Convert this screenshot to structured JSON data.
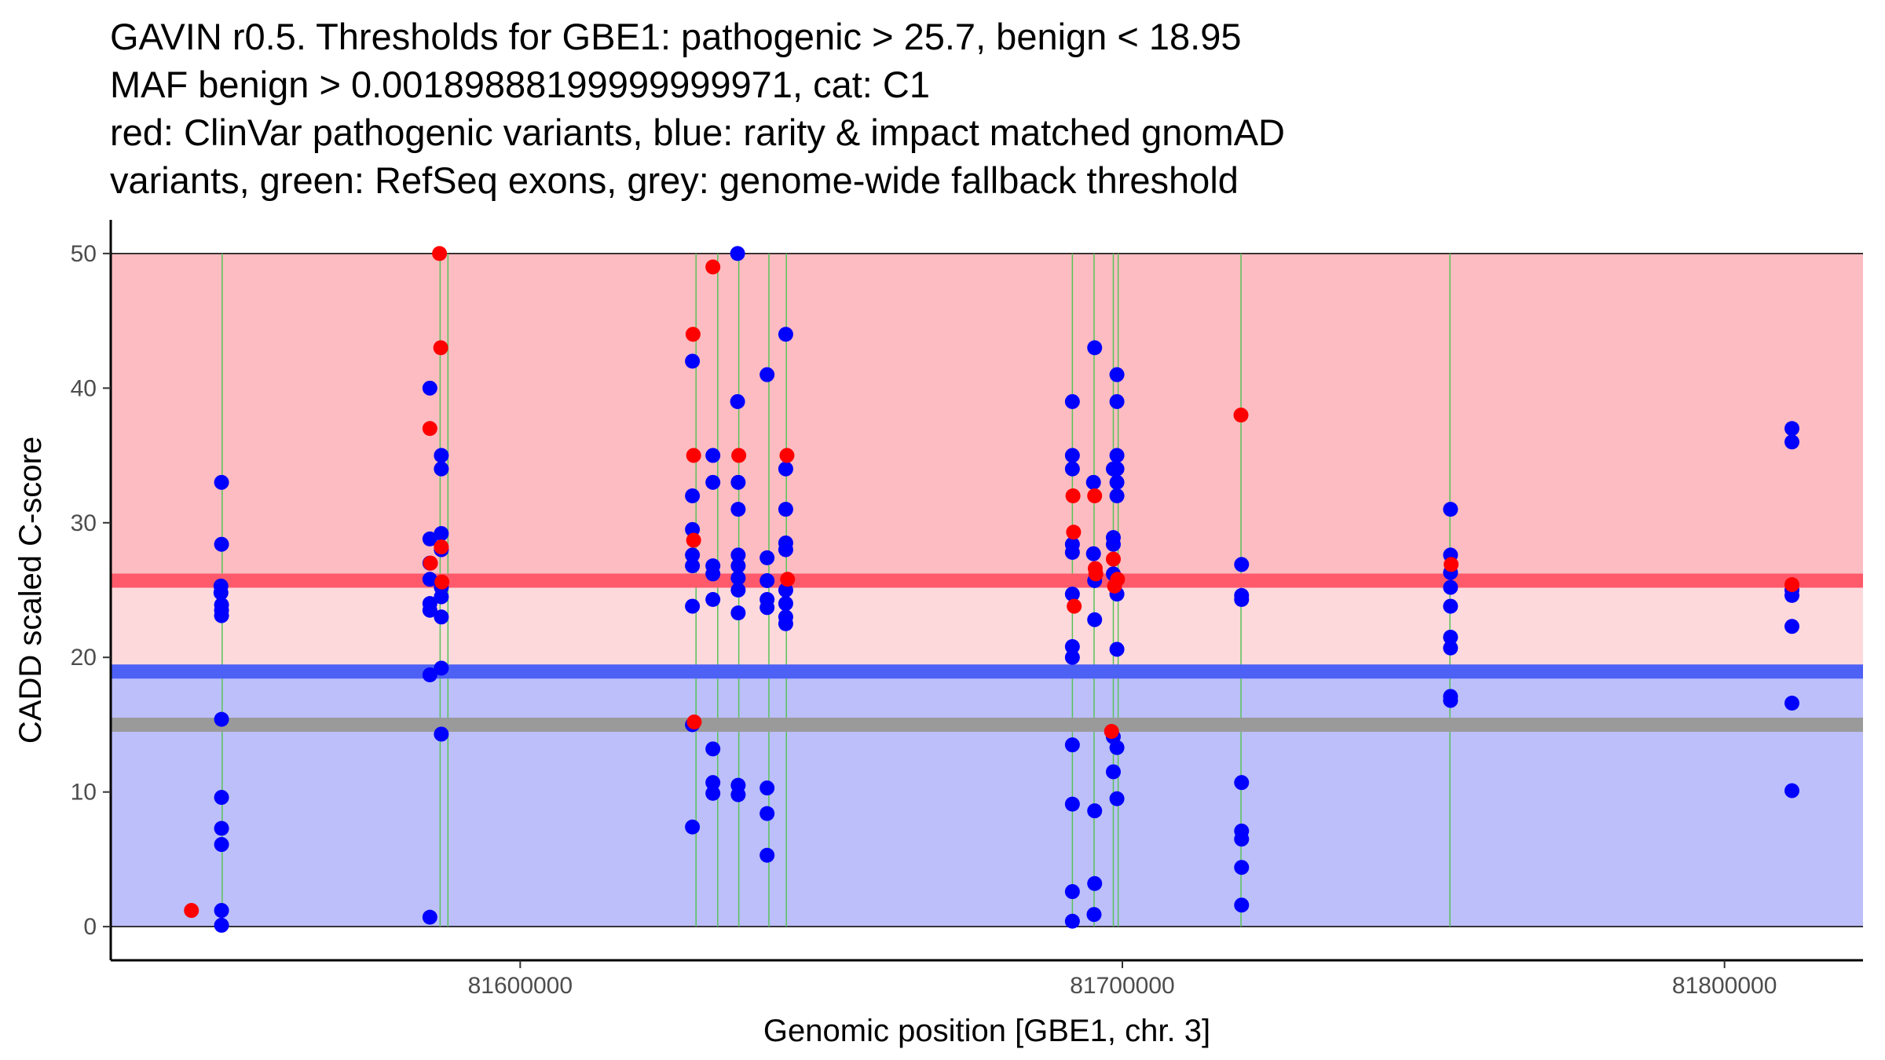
{
  "chart_data": {
    "type": "scatter",
    "title_lines": [
      "GAVIN r0.5. Thresholds for GBE1: pathogenic > 25.7, benign < 18.95",
      "MAF benign > 0.00189888199999999971, cat: C1",
      "red: ClinVar pathogenic variants, blue: rarity & impact matched gnomAD",
      "variants, green: RefSeq exons, grey: genome-wide fallback threshold"
    ],
    "xlabel": "Genomic position [GBE1, chr. 3]",
    "ylabel": "CADD scaled C-score",
    "xlim": [
      81532000,
      81823000
    ],
    "ylim": [
      -2.5,
      52.5
    ],
    "xticks": [
      81600000,
      81700000,
      81800000
    ],
    "xtick_labels": [
      "81600000",
      "81700000",
      "81800000"
    ],
    "yticks": [
      0,
      10,
      20,
      30,
      40,
      50
    ],
    "ytick_labels": [
      "0",
      "10",
      "20",
      "30",
      "40",
      "50"
    ],
    "thresholds": {
      "pathogenic": 25.7,
      "benign": 18.95,
      "fallback": 15.0
    },
    "regions": [
      {
        "name": "pathogenic-zone",
        "ymin": 25.7,
        "ymax": 50,
        "color": "#FDBCC1"
      },
      {
        "name": "uncertain-zone",
        "ymin": 18.95,
        "ymax": 25.7,
        "color": "#FDD9DC"
      },
      {
        "name": "benign-zone",
        "ymin": 0,
        "ymax": 18.95,
        "color": "#BCBFFA"
      }
    ],
    "threshold_lines": [
      {
        "name": "pathogenic-threshold-line",
        "y": 25.7,
        "color": "#FF5A6B"
      },
      {
        "name": "benign-threshold-line",
        "y": 18.95,
        "color": "#4E61F5"
      },
      {
        "name": "fallback-threshold-line",
        "y": 15.0,
        "color": "#9A9A9A"
      }
    ],
    "exons": [
      81550500,
      81586700,
      81588000,
      81629200,
      81632800,
      81636300,
      81641300,
      81644200,
      81691700,
      81695300,
      81698500,
      81699300,
      81719700,
      81754400
    ],
    "colors": {
      "clinvar": "#FF0000",
      "gnomad": "#0000FF",
      "exon": "#59C259"
    },
    "series": [
      {
        "name": "ClinVar pathogenic variants",
        "points": [
          [
            81545400,
            1.2
          ],
          [
            81585000,
            37
          ],
          [
            81585100,
            27
          ],
          [
            81586600,
            50
          ],
          [
            81586800,
            43
          ],
          [
            81586900,
            28.2
          ],
          [
            81587000,
            25.6
          ],
          [
            81628700,
            44
          ],
          [
            81628800,
            35
          ],
          [
            81628800,
            28.7
          ],
          [
            81628900,
            15.2
          ],
          [
            81632000,
            49
          ],
          [
            81636300,
            35
          ],
          [
            81644300,
            35
          ],
          [
            81644400,
            25.8
          ],
          [
            81691800,
            32
          ],
          [
            81691900,
            29.3
          ],
          [
            81692000,
            23.8
          ],
          [
            81695400,
            32
          ],
          [
            81695500,
            26.6
          ],
          [
            81695600,
            26.2
          ],
          [
            81698200,
            14.5
          ],
          [
            81698500,
            27.3
          ],
          [
            81698700,
            25.3
          ],
          [
            81699200,
            25.8
          ],
          [
            81719700,
            38
          ],
          [
            81754600,
            26.9
          ],
          [
            81811200,
            25.4
          ]
        ]
      },
      {
        "name": "rarity & impact matched gnomAD variants",
        "points": [
          [
            81550400,
            33
          ],
          [
            81550400,
            28.4
          ],
          [
            81550300,
            25.3
          ],
          [
            81550300,
            24.8
          ],
          [
            81550400,
            23.9
          ],
          [
            81550400,
            23.5
          ],
          [
            81550400,
            23.1
          ],
          [
            81550400,
            15.4
          ],
          [
            81550400,
            9.6
          ],
          [
            81550400,
            7.3
          ],
          [
            81550400,
            6.1
          ],
          [
            81550400,
            1.2
          ],
          [
            81550400,
            0.1
          ],
          [
            81585000,
            40
          ],
          [
            81585000,
            28.8
          ],
          [
            81585000,
            27
          ],
          [
            81585000,
            25.8
          ],
          [
            81585000,
            24
          ],
          [
            81585000,
            23.5
          ],
          [
            81585000,
            18.7
          ],
          [
            81585000,
            0.7
          ],
          [
            81586900,
            35
          ],
          [
            81586900,
            34
          ],
          [
            81586900,
            29.2
          ],
          [
            81586900,
            28
          ],
          [
            81586900,
            25.2
          ],
          [
            81586900,
            24.5
          ],
          [
            81586900,
            23
          ],
          [
            81586900,
            19.2
          ],
          [
            81586900,
            14.3
          ],
          [
            81628600,
            42
          ],
          [
            81628600,
            32
          ],
          [
            81628600,
            29.5
          ],
          [
            81628600,
            27.6
          ],
          [
            81628600,
            26.8
          ],
          [
            81628600,
            23.8
          ],
          [
            81628600,
            15
          ],
          [
            81628600,
            7.4
          ],
          [
            81632000,
            35
          ],
          [
            81632000,
            33
          ],
          [
            81632000,
            26.8
          ],
          [
            81632000,
            26.2
          ],
          [
            81632000,
            24.3
          ],
          [
            81632000,
            13.2
          ],
          [
            81632000,
            10.7
          ],
          [
            81632000,
            9.9
          ],
          [
            81636100,
            50
          ],
          [
            81636100,
            39
          ],
          [
            81636200,
            33
          ],
          [
            81636200,
            31
          ],
          [
            81636200,
            27.6
          ],
          [
            81636200,
            26.8
          ],
          [
            81636200,
            25.9
          ],
          [
            81636200,
            25.0
          ],
          [
            81636200,
            23.3
          ],
          [
            81636200,
            10.5
          ],
          [
            81636200,
            9.8
          ],
          [
            81641000,
            41
          ],
          [
            81641000,
            27.4
          ],
          [
            81641000,
            25.7
          ],
          [
            81641000,
            24.3
          ],
          [
            81641000,
            23.7
          ],
          [
            81641000,
            10.3
          ],
          [
            81641000,
            8.4
          ],
          [
            81641000,
            5.3
          ],
          [
            81644100,
            44
          ],
          [
            81644100,
            34
          ],
          [
            81644100,
            31
          ],
          [
            81644100,
            28.5
          ],
          [
            81644100,
            28
          ],
          [
            81644100,
            25
          ],
          [
            81644100,
            24
          ],
          [
            81644100,
            23
          ],
          [
            81644100,
            22.5
          ],
          [
            81691700,
            39
          ],
          [
            81691700,
            35
          ],
          [
            81691700,
            34
          ],
          [
            81691700,
            28.4
          ],
          [
            81691700,
            27.8
          ],
          [
            81691700,
            24.7
          ],
          [
            81691700,
            20.8
          ],
          [
            81691700,
            20
          ],
          [
            81691700,
            13.5
          ],
          [
            81691700,
            9.1
          ],
          [
            81691700,
            2.6
          ],
          [
            81691700,
            0.4
          ],
          [
            81695400,
            43
          ],
          [
            81695200,
            33
          ],
          [
            81695200,
            27.7
          ],
          [
            81695400,
            25.7
          ],
          [
            81695400,
            22.8
          ],
          [
            81695400,
            8.6
          ],
          [
            81695400,
            3.2
          ],
          [
            81695300,
            0.9
          ],
          [
            81698500,
            34
          ],
          [
            81698500,
            28.9
          ],
          [
            81698500,
            28.4
          ],
          [
            81698500,
            26.2
          ],
          [
            81698500,
            14.1
          ],
          [
            81698500,
            11.5
          ],
          [
            81699100,
            41
          ],
          [
            81699100,
            39
          ],
          [
            81699100,
            35
          ],
          [
            81699100,
            34
          ],
          [
            81699100,
            33
          ],
          [
            81699100,
            32
          ],
          [
            81699100,
            24.7
          ],
          [
            81699100,
            20.6
          ],
          [
            81699100,
            13.3
          ],
          [
            81699100,
            9.5
          ],
          [
            81719800,
            26.9
          ],
          [
            81719800,
            24.6
          ],
          [
            81719800,
            24.3
          ],
          [
            81719800,
            10.7
          ],
          [
            81719800,
            7.1
          ],
          [
            81719800,
            6.5
          ],
          [
            81719800,
            4.4
          ],
          [
            81719800,
            1.6
          ],
          [
            81754500,
            31
          ],
          [
            81754500,
            27.6
          ],
          [
            81754500,
            26.3
          ],
          [
            81754500,
            25.2
          ],
          [
            81754500,
            23.8
          ],
          [
            81754500,
            21.5
          ],
          [
            81754500,
            20.7
          ],
          [
            81754500,
            17.1
          ],
          [
            81754500,
            16.8
          ],
          [
            81811200,
            37
          ],
          [
            81811200,
            36
          ],
          [
            81811200,
            25
          ],
          [
            81811200,
            24.6
          ],
          [
            81811200,
            22.3
          ],
          [
            81811200,
            16.6
          ],
          [
            81811200,
            10.1
          ]
        ]
      }
    ]
  }
}
